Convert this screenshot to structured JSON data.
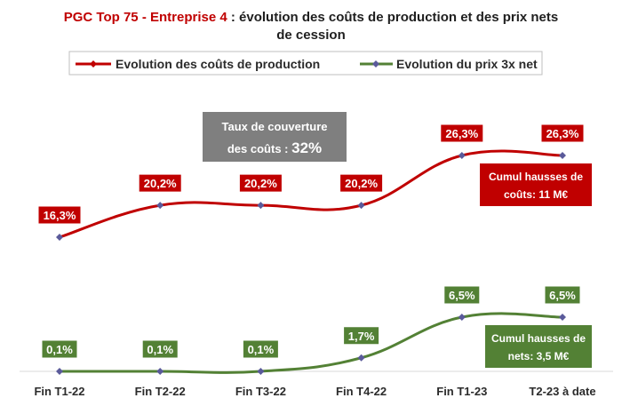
{
  "title": {
    "part1": "PGC Top 75 - Entreprise 4",
    "part2": " : évolution des coûts de production et des prix nets",
    "line2": "de cession"
  },
  "colors": {
    "red": "#c00000",
    "green": "#538135",
    "marker": "#5a5a9a",
    "gray": "#7f7f7f"
  },
  "legend": {
    "series1": "Evolution des coûts de production",
    "series2": "Evolution du prix 3x net"
  },
  "annotations": {
    "coverage_line1": "Taux de couverture",
    "coverage_line2_prefix": "des coûts : ",
    "coverage_value": "32%",
    "costs_line1": "Cumul hausses de",
    "costs_line2": "coûts: 11 M€",
    "nets_line1": "Cumul hausses de",
    "nets_line2": "nets: 3,5 M€"
  },
  "chart_data": {
    "type": "line",
    "categories": [
      "Fin T1-22",
      "Fin T2-22",
      "Fin T3-22",
      "Fin T4-22",
      "Fin T1-23",
      "T2-23 à date"
    ],
    "series": [
      {
        "name": "Evolution des coûts de production",
        "values": [
          16.3,
          20.2,
          20.2,
          20.2,
          26.3,
          26.3
        ],
        "labels": [
          "16,3%",
          "20,2%",
          "20,2%",
          "20,2%",
          "26,3%",
          "26,3%"
        ],
        "color": "#c00000"
      },
      {
        "name": "Evolution du prix 3x net",
        "values": [
          0.1,
          0.1,
          0.1,
          1.7,
          6.5,
          6.5
        ],
        "labels": [
          "0,1%",
          "0,1%",
          "0,1%",
          "1,7%",
          "6,5%",
          "6,5%"
        ],
        "color": "#538135"
      }
    ],
    "grid": false,
    "legend_position": "top"
  }
}
